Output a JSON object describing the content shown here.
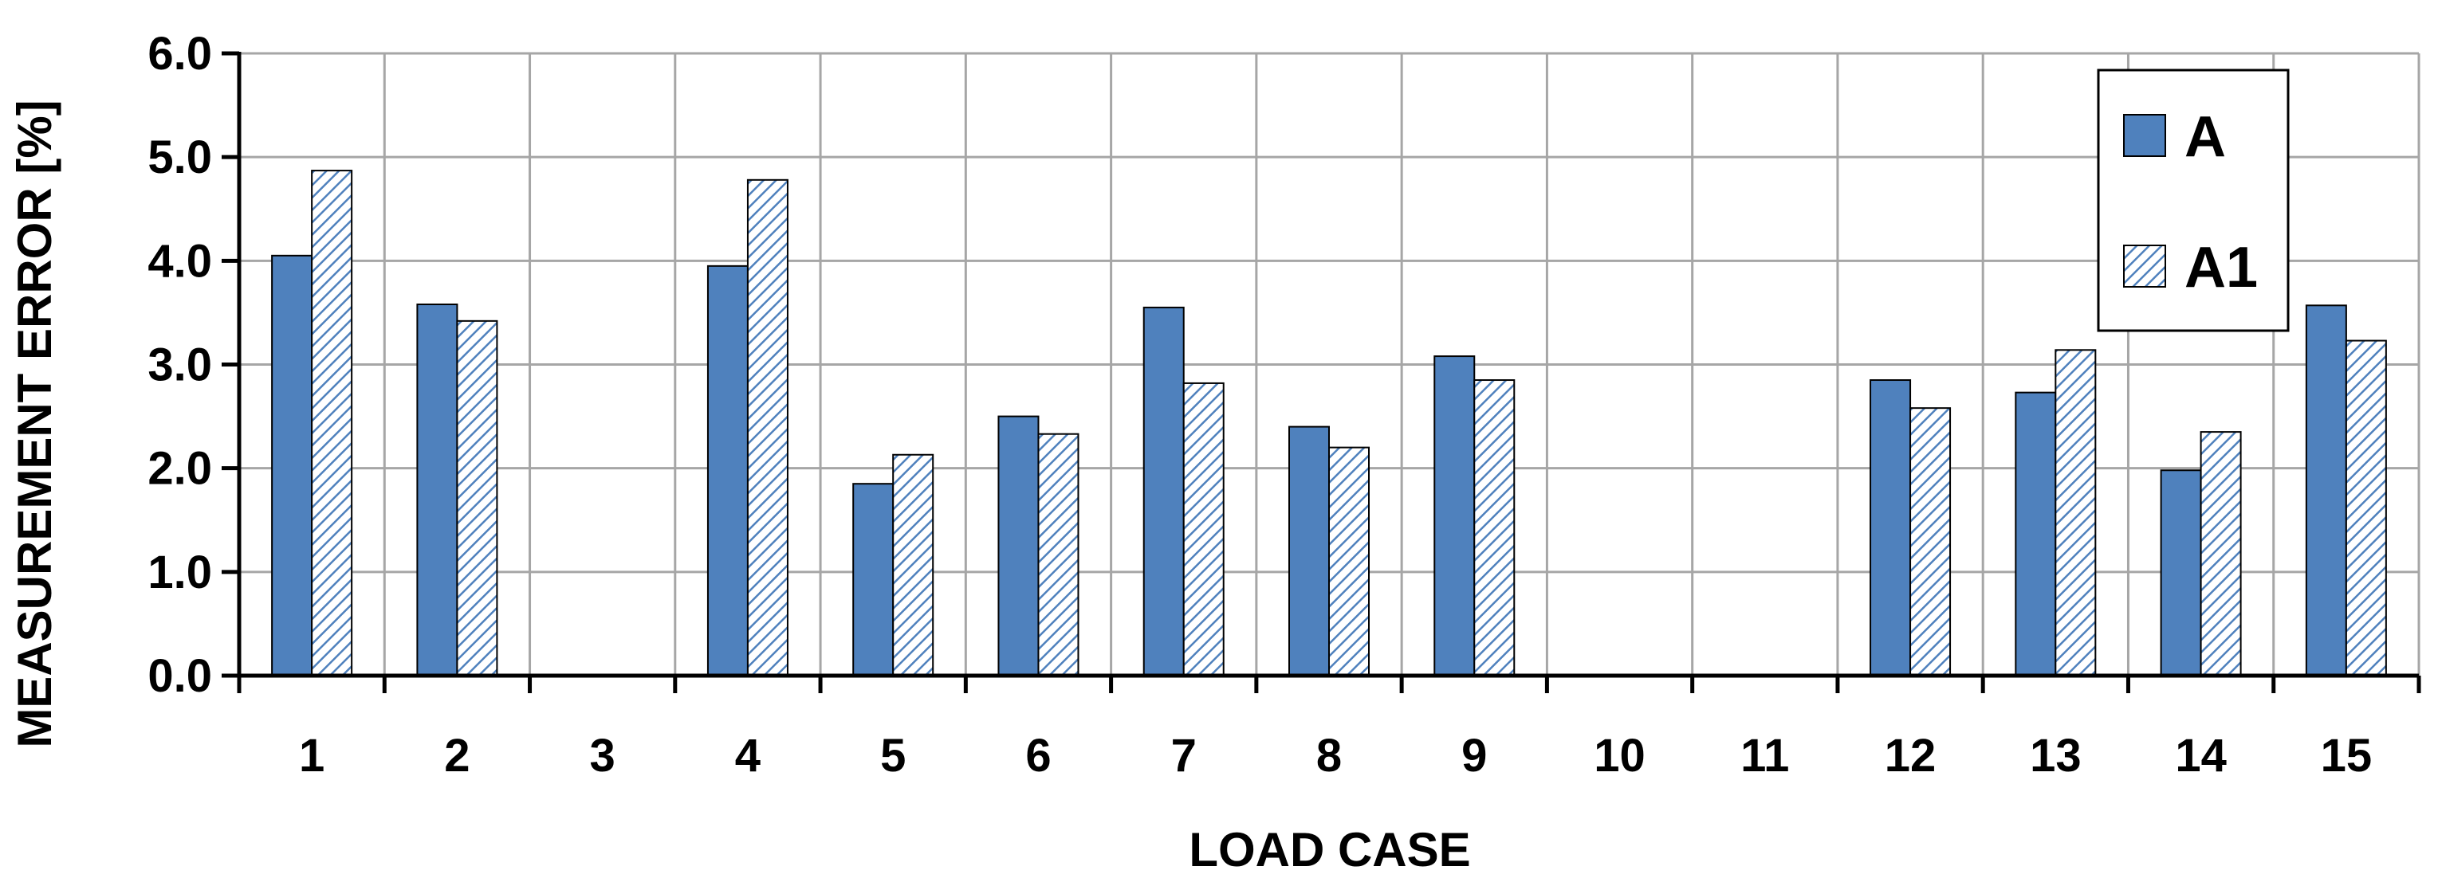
{
  "chart_data": {
    "type": "bar",
    "title": "",
    "xlabel": "LOAD CASE",
    "ylabel": "MEASUREMENT ERROR [%]",
    "ylim": [
      0,
      6
    ],
    "y_ticks": [
      "0.0",
      "1.0",
      "2.0",
      "3.0",
      "4.0",
      "5.0",
      "6.0"
    ],
    "categories": [
      "1",
      "2",
      "3",
      "4",
      "5",
      "6",
      "7",
      "8",
      "9",
      "10",
      "11",
      "12",
      "13",
      "14",
      "15"
    ],
    "series": [
      {
        "name": "A",
        "values": [
          4.05,
          3.58,
          null,
          3.95,
          1.85,
          2.5,
          3.55,
          2.4,
          3.08,
          null,
          null,
          2.85,
          2.73,
          1.98,
          3.57
        ]
      },
      {
        "name": "A1",
        "values": [
          4.87,
          3.42,
          null,
          4.78,
          2.13,
          2.33,
          2.82,
          2.2,
          2.85,
          null,
          null,
          2.58,
          3.14,
          2.35,
          3.23
        ]
      }
    ],
    "grid": true,
    "legend_position": "top-right",
    "colors": {
      "A": "#4f81bd",
      "A1_hatch": "#4f81bd",
      "A1_background": "#ffffff",
      "grid": "#a6a6a6",
      "axis": "#000000"
    }
  }
}
